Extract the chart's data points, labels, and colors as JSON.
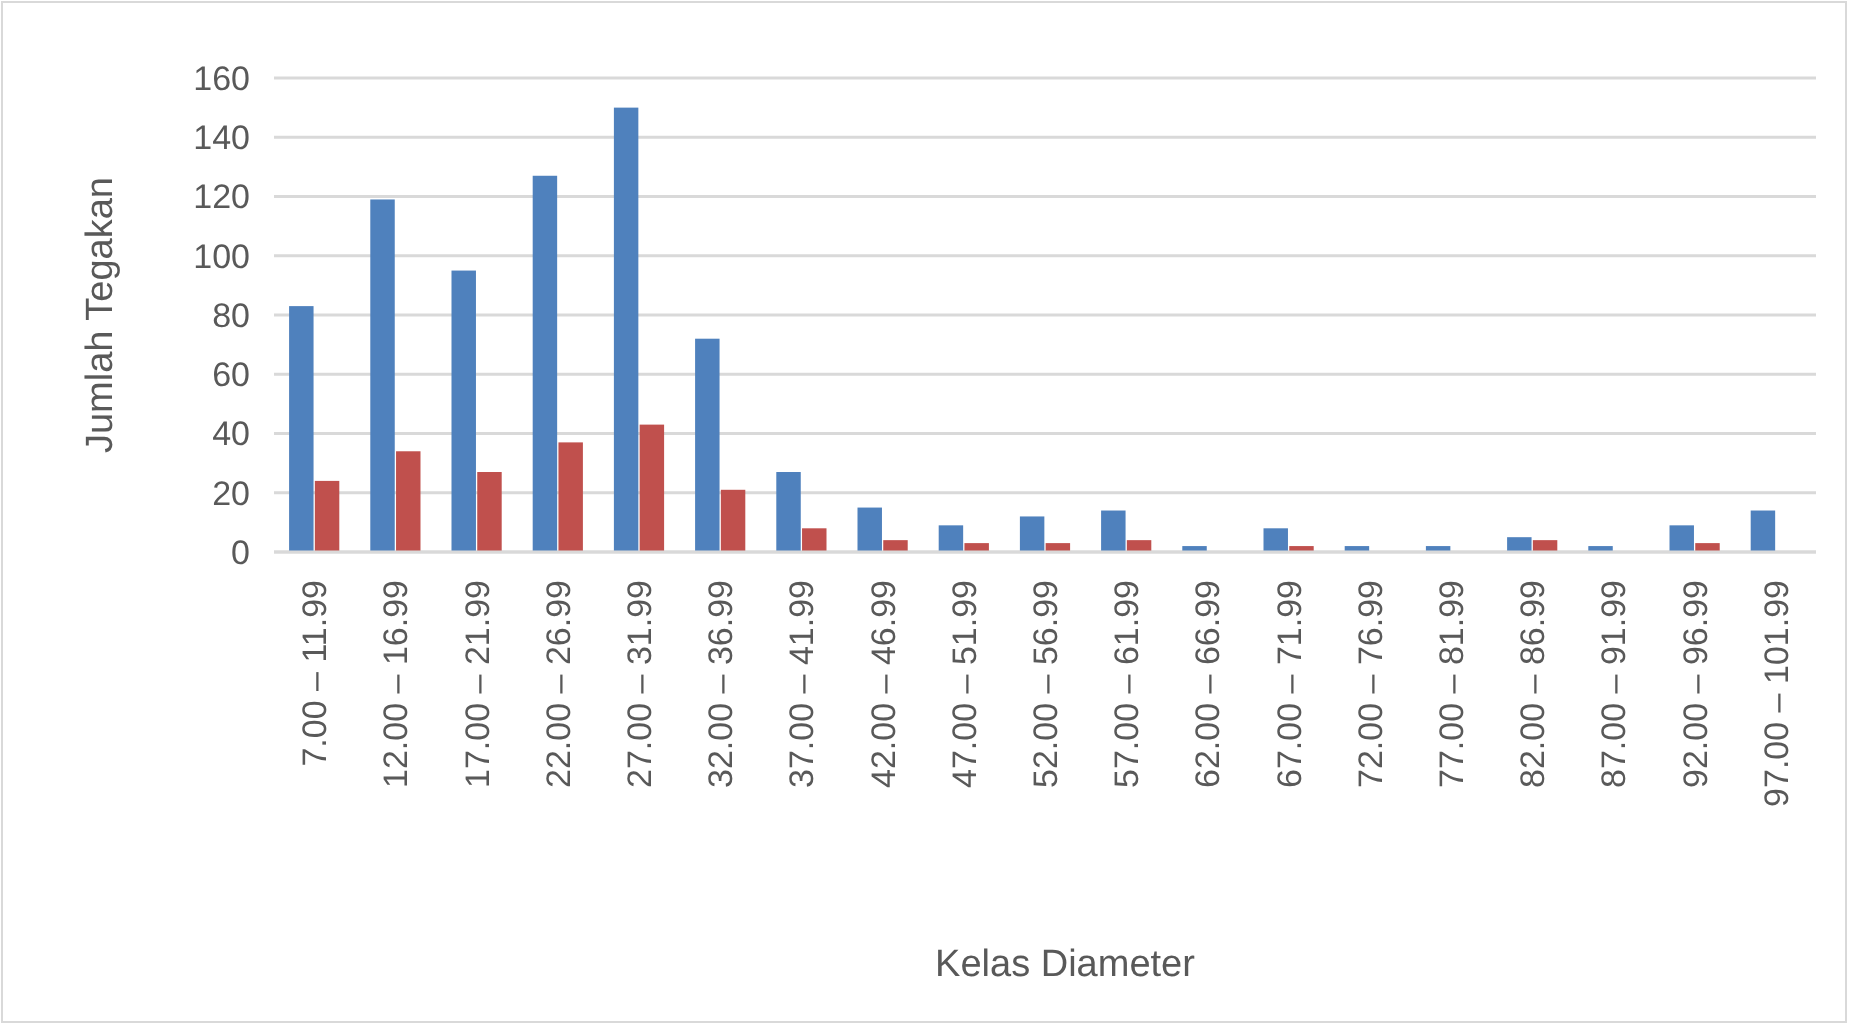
{
  "chart_data": {
    "type": "bar",
    "xlabel": "Kelas Diameter",
    "ylabel": "Jumlah Tegakan",
    "categories": [
      "7.00 – 11.99",
      "12.00 – 16.99",
      "17.00 – 21.99",
      "22.00 – 26.99",
      "27.00 – 31.99",
      "32.00 – 36.99",
      "37.00 – 41.99",
      "42.00 – 46.99",
      "47.00 – 51.99",
      "52.00 – 56.99",
      "57.00 – 61.99",
      "62.00 – 66.99",
      "67.00 – 71.99",
      "72.00 – 76.99",
      "77.00 – 81.99",
      "82.00 – 86.99",
      "87.00 – 91.99",
      "92.00 – 96.99",
      "97.00 – 101.99"
    ],
    "series": [
      {
        "color": "#4f81bd",
        "values": [
          83,
          119,
          95,
          127,
          150,
          72,
          27,
          15,
          9,
          12,
          14,
          2,
          8,
          2,
          2,
          5,
          2,
          9,
          14
        ]
      },
      {
        "color": "#c0504d",
        "values": [
          24,
          34,
          27,
          37,
          43,
          21,
          8,
          4,
          3,
          3,
          4,
          null,
          2,
          null,
          null,
          4,
          null,
          3,
          null
        ]
      }
    ],
    "ylim": [
      0,
      160
    ],
    "yticks": [
      0,
      20,
      40,
      60,
      80,
      100,
      120,
      140,
      160
    ],
    "grid": "y"
  }
}
